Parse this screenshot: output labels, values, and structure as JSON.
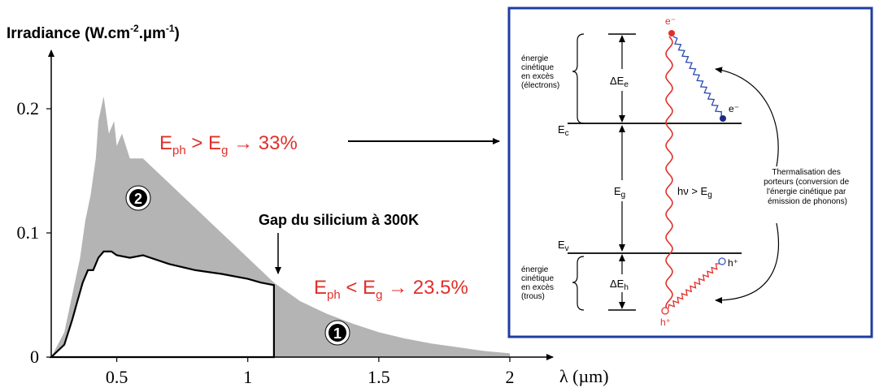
{
  "colors": {
    "fill_gray": "#b4b4b4",
    "curve_black": "#000000",
    "red": "#e0302a",
    "box_blue": "#1f3da0",
    "wave_blue": "#2a4ab0",
    "hole_blue": "#3a55c8"
  },
  "spectrum": {
    "y_axis_label": "Irradiance (W.cm-2.µm-1)",
    "y_axis_label_parts": {
      "main": "Irradiance (W.cm",
      "sup1": "-2",
      "mid": ".µm",
      "sup2": "-1",
      "end": ")"
    },
    "x_axis_label": "λ (µm)",
    "y_ticks": [
      "0",
      "0.1",
      "0.2"
    ],
    "x_ticks": [
      "0.5",
      "1",
      "1.5",
      "2"
    ],
    "region_2_marker": "❷",
    "region_1_marker": "❶",
    "gap_label": "Gap du silicium à 300K",
    "label_above": "Eph > Eg → 33%",
    "label_above_parts": {
      "E": "E",
      "sub1": "ph",
      "op": " > E",
      "sub2": "g",
      "rest": " → 33%"
    },
    "label_below": "Eph < Eg → 23.5%",
    "label_below_parts": {
      "E": "E",
      "sub1": "ph",
      "op": " < E",
      "sub2": "g",
      "rest": " → 23.5%"
    }
  },
  "chart_data": {
    "type": "area",
    "xlabel": "λ (µm)",
    "ylabel": "Irradiance (W.cm-2.µm-1)",
    "xlim": [
      0.25,
      2.1
    ],
    "ylim": [
      0,
      0.23
    ],
    "x_ticks": [
      0.5,
      1,
      1.5,
      2
    ],
    "y_ticks": [
      0,
      0.1,
      0.2
    ],
    "series": [
      {
        "x": [
          0.25,
          0.3,
          0.33,
          0.36,
          0.38,
          0.4,
          0.42,
          0.43,
          0.44,
          0.45,
          0.47,
          0.49,
          0.5,
          0.52,
          0.55,
          0.6,
          0.65,
          0.7,
          0.75,
          0.8,
          0.85,
          0.9,
          0.95,
          1.0,
          1.05,
          1.1,
          1.2,
          1.3,
          1.4,
          1.5,
          1.6,
          1.7,
          1.8,
          1.9,
          2.0
        ],
        "y": [
          0.0,
          0.02,
          0.05,
          0.08,
          0.11,
          0.13,
          0.16,
          0.19,
          0.2,
          0.21,
          0.18,
          0.19,
          0.17,
          0.18,
          0.16,
          0.16,
          0.15,
          0.14,
          0.13,
          0.12,
          0.11,
          0.1,
          0.09,
          0.08,
          0.07,
          0.06,
          0.045,
          0.035,
          0.027,
          0.02,
          0.015,
          0.011,
          0.008,
          0.005,
          0.003
        ]
      },
      {
        "x": [
          0.25,
          0.3,
          0.33,
          0.35,
          0.37,
          0.39,
          0.41,
          0.43,
          0.45,
          0.48,
          0.5,
          0.55,
          0.6,
          0.7,
          0.8,
          0.9,
          1.0,
          1.05,
          1.1,
          1.1
        ],
        "y": [
          0.0,
          0.01,
          0.03,
          0.045,
          0.06,
          0.07,
          0.07,
          0.08,
          0.085,
          0.085,
          0.082,
          0.08,
          0.082,
          0.075,
          0.07,
          0.067,
          0.063,
          0.06,
          0.058,
          0.0
        ]
      }
    ],
    "annotations": [
      "Gap du silicium à 300K",
      "Eph > Eg → 33%",
      "Eph < Eg → 23.5%",
      "❶",
      "❷"
    ]
  },
  "band_diagram": {
    "electron_top": "e⁻",
    "electron_bottom": "e⁻",
    "hole_top": "h⁺",
    "hole_bottom": "h⁺",
    "delta_Ee": "ΔEe",
    "delta_Eh": "ΔEh",
    "Ec": "Ec",
    "Ev": "Ev",
    "Eg": "Eg",
    "photon": "hν > Eg",
    "kinetic_electrons": [
      "énergie",
      "cinétique",
      "en excès",
      "(électrons)"
    ],
    "kinetic_holes": [
      "énergie",
      "cinétique",
      "en excès",
      "(trous)"
    ],
    "thermalisation": [
      "Thermalisation des",
      "porteurs (conversion de",
      "l'énergie cinétique par",
      "émission de phonons)"
    ]
  }
}
